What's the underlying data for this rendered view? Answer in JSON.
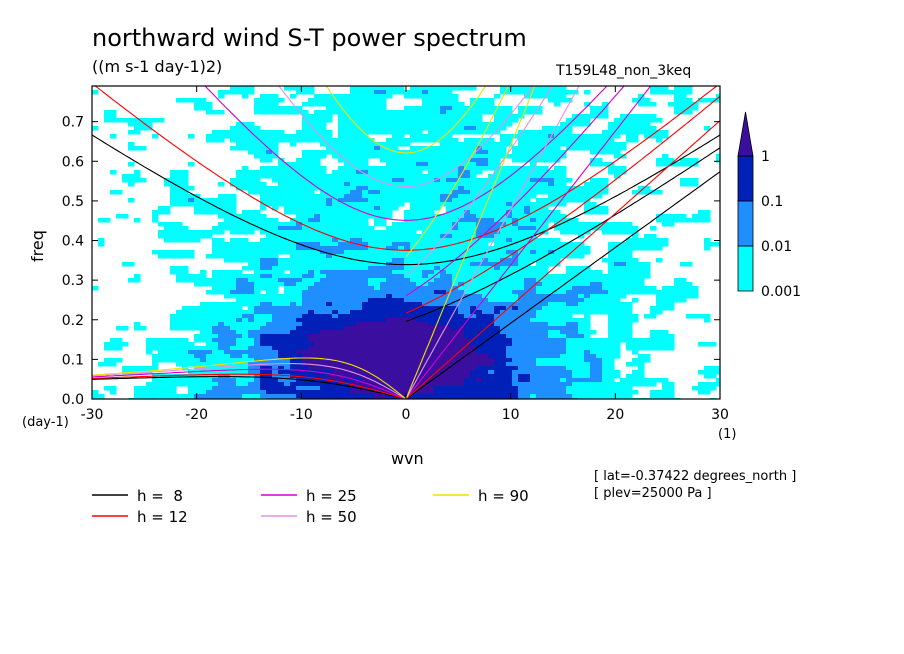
{
  "chart_data": {
    "type": "heatmap",
    "title": "northward wind S-T power spectrum",
    "units": "((m s-1 day-1)2)",
    "run_label": "T159L48_non_3keq",
    "xlabel": "wvn",
    "ylabel": "freq",
    "x_unit": "(1)",
    "y_unit": "(day-1)",
    "xlim": [
      -30,
      30
    ],
    "ylim": [
      0,
      0.79
    ],
    "x_ticks": [
      "-30",
      "-20",
      "-10",
      "0",
      "10",
      "20",
      "30"
    ],
    "y_ticks": [
      "0.0",
      "0.1",
      "0.2",
      "0.3",
      "0.4",
      "0.5",
      "0.6",
      "0.7"
    ],
    "colorbar": {
      "levels": [
        "0.001",
        "0.01",
        "0.1",
        "1"
      ],
      "colors": [
        "#00ffff",
        "#1f8fff",
        "#0020b8",
        "#3a0fa0"
      ]
    },
    "dispersion_curves": [
      {
        "label": "h =  8",
        "color": "#000000"
      },
      {
        "label": "h = 12",
        "color": "#ff0000"
      },
      {
        "label": "h = 25",
        "color": "#d400d4"
      },
      {
        "label": "h = 50",
        "color": "#e590e5"
      },
      {
        "label": "h = 90",
        "color": "#f0e000"
      }
    ],
    "annotations": [
      "[ lat=-0.37422 degrees_north ]",
      "[ plev=25000 Pa ]"
    ]
  }
}
